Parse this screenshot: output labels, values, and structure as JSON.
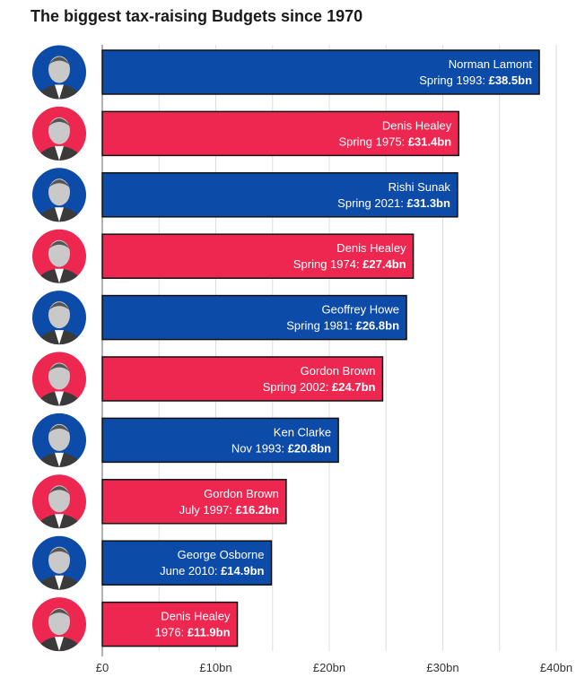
{
  "chart_data": {
    "type": "bar",
    "orientation": "horizontal",
    "title": "The biggest tax-raising Budgets since 1970",
    "xlim": [
      0,
      40
    ],
    "x_ticks": [
      0,
      10,
      20,
      30,
      40
    ],
    "x_tick_labels": [
      "£0",
      "£10bn",
      "£20bn",
      "£30bn",
      "£40bn"
    ],
    "grid": true,
    "series": [
      {
        "name": "Norman Lamont",
        "period": "Spring 1993",
        "value_label": "£38.5bn",
        "value": 38.5,
        "party": "conservative"
      },
      {
        "name": "Denis Healey",
        "period": "Spring 1975",
        "value_label": "£31.4bn",
        "value": 31.4,
        "party": "labour"
      },
      {
        "name": "Rishi Sunak",
        "period": "Spring 2021",
        "value_label": "£31.3bn",
        "value": 31.3,
        "party": "conservative"
      },
      {
        "name": "Denis Healey",
        "period": "Spring 1974",
        "value_label": "£27.4bn",
        "value": 27.4,
        "party": "labour"
      },
      {
        "name": "Geoffrey Howe",
        "period": "Spring 1981",
        "value_label": "£26.8bn",
        "value": 26.8,
        "party": "conservative"
      },
      {
        "name": "Gordon Brown",
        "period": "Spring 2002",
        "value_label": "£24.7bn",
        "value": 24.7,
        "party": "labour"
      },
      {
        "name": "Ken Clarke",
        "period": "Nov 1993",
        "value_label": "£20.8bn",
        "value": 20.8,
        "party": "conservative"
      },
      {
        "name": "Gordon Brown",
        "period": "July 1997",
        "value_label": "£16.2bn",
        "value": 16.2,
        "party": "labour"
      },
      {
        "name": "George Osborne",
        "period": "June 2010",
        "value_label": "£14.9bn",
        "value": 14.9,
        "party": "conservative"
      },
      {
        "name": "Denis Healey",
        "period": "1976",
        "value_label": "£11.9bn",
        "value": 11.9,
        "party": "labour"
      }
    ]
  },
  "colors": {
    "conservative": "#0d4ba9",
    "labour": "#ee2751",
    "bar_outline": "#111111",
    "grid": "#dddddd",
    "skin": "#c9c9c9",
    "suit": "#3a3a3a"
  },
  "portrait_icon": "person-portrait-icon"
}
